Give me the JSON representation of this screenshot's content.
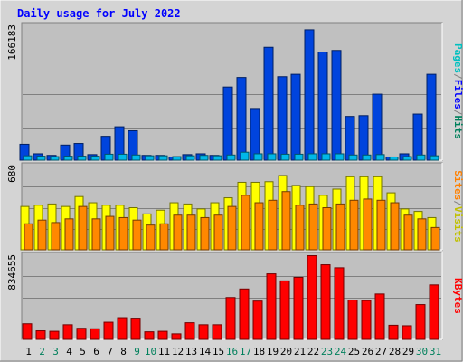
{
  "chart_data": {
    "title": "Daily usage for July 2022",
    "days": [
      "1",
      "2",
      "3",
      "4",
      "5",
      "6",
      "7",
      "8",
      "9",
      "10",
      "11",
      "12",
      "13",
      "14",
      "15",
      "16",
      "17",
      "18",
      "19",
      "20",
      "21",
      "22",
      "23",
      "24",
      "25",
      "26",
      "27",
      "28",
      "29",
      "30",
      "31"
    ],
    "weekend_days": [
      "2",
      "3",
      "9",
      "10",
      "16",
      "17",
      "23",
      "24",
      "30",
      "31"
    ],
    "panels": [
      {
        "type": "bar",
        "max_label": "166183",
        "ylim": [
          0,
          166183
        ],
        "side_labels": [
          {
            "text": "Hits",
            "color": "#00805c"
          },
          {
            "text": "/",
            "color": "#808080"
          },
          {
            "text": "Files",
            "color": "#0000ff"
          },
          {
            "text": "/",
            "color": "#808080"
          },
          {
            "text": "Pages",
            "color": "#00c0c0"
          }
        ],
        "series": [
          {
            "name": "Hits",
            "color": "#0044dd",
            "values": [
              20000,
              8000,
              6000,
              19000,
              21000,
              7000,
              30000,
              42000,
              37000,
              6000,
              6000,
              4000,
              7000,
              8000,
              6000,
              92000,
              104000,
              65000,
              142000,
              105000,
              108000,
              164000,
              136000,
              138000,
              55000,
              56000,
              83000,
              4000,
              8000,
              58000,
              108000
            ]
          },
          {
            "name": "Pages",
            "color": "#00b8e8",
            "values": [
              5500,
              5000,
              4500,
              5000,
              5000,
              5000,
              7500,
              7500,
              6500,
              5500,
              5500,
              4500,
              5500,
              6000,
              5500,
              6500,
              10000,
              8000,
              8000,
              7500,
              7500,
              8000,
              8000,
              8000,
              6500,
              6500,
              7000,
              4000,
              4500,
              6500,
              5500
            ]
          }
        ]
      },
      {
        "type": "bar",
        "max_label": "680",
        "ylim": [
          0,
          680
        ],
        "side_labels": [
          {
            "text": "Visits",
            "color": "#c0c000"
          },
          {
            "text": "/",
            "color": "#808080"
          },
          {
            "text": "Sites",
            "color": "#ff8000"
          }
        ],
        "series": [
          {
            "name": "Visits",
            "color": "#ffff00",
            "values": [
              350,
              360,
              370,
              350,
              430,
              380,
              360,
              360,
              340,
              290,
              320,
              380,
              370,
              330,
              380,
              420,
              545,
              545,
              550,
              600,
              520,
              510,
              440,
              490,
              590,
              590,
              590,
              460,
              330,
              310,
              260
            ]
          },
          {
            "name": "Sites",
            "color": "#ff8800",
            "values": [
              210,
              240,
              220,
              250,
              350,
              250,
              270,
              260,
              240,
              200,
              210,
              280,
              280,
              260,
              280,
              350,
              440,
              380,
              400,
              470,
              360,
              370,
              340,
              370,
              400,
              410,
              400,
              380,
              280,
              250,
              180
            ]
          }
        ]
      },
      {
        "type": "bar",
        "max_label": "834655",
        "ylim": [
          0,
          834655
        ],
        "side_labels": [
          {
            "text": "KBytes",
            "color": "#ff0000"
          }
        ],
        "series": [
          {
            "name": "KBytes",
            "color": "#ff0000",
            "values": [
              155000,
              85000,
              80000,
              145000,
              110000,
              105000,
              170000,
              215000,
              210000,
              75000,
              80000,
              55000,
              165000,
              145000,
              145000,
              415000,
              500000,
              380000,
              650000,
              580000,
              615000,
              830000,
              740000,
              710000,
              390000,
              385000,
              450000,
              140000,
              135000,
              345000,
              540000
            ]
          }
        ]
      }
    ]
  },
  "colors": {
    "panel_bg": "#c0c0c0",
    "outer_bg": "#d4d4d4",
    "title_color": "#0000ff",
    "weekday_label": "#000000",
    "weekend_label": "#00805c"
  }
}
